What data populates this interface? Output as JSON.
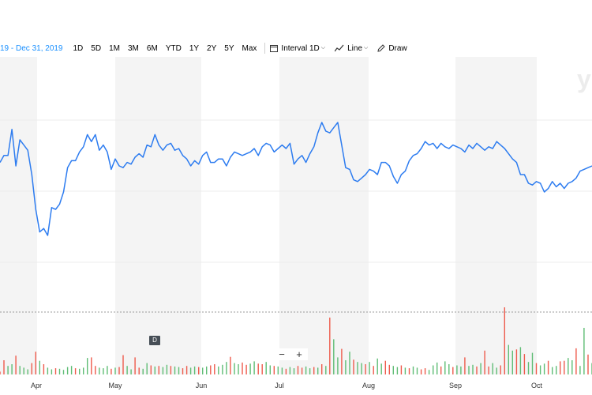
{
  "toolbar": {
    "date_range": "19 - Dec 31, 2019",
    "periods": [
      "1D",
      "5D",
      "1M",
      "3M",
      "6M",
      "YTD",
      "1Y",
      "2Y",
      "5Y",
      "Max"
    ],
    "interval_label": "Interval",
    "interval_value": "1D",
    "chart_type": "Line",
    "draw_label": "Draw"
  },
  "watermark": "y",
  "d_badge": "D",
  "zoom": {
    "minus": "−",
    "plus": "+"
  },
  "colors": {
    "price_line": "#2d7cf0",
    "volume_up": "#5fbd75",
    "volume_down": "#ee5b4c",
    "shade": "#f4f4f4",
    "range_text": "#188fff"
  },
  "chart_data": {
    "type": "line",
    "title": "",
    "months": [
      "Apr",
      "May",
      "Jun",
      "Jul",
      "Aug",
      "Sep",
      "Oct"
    ],
    "price": [
      0.62,
      0.66,
      0.66,
      0.81,
      0.6,
      0.75,
      0.72,
      0.69,
      0.55,
      0.35,
      0.22,
      0.24,
      0.2,
      0.36,
      0.35,
      0.38,
      0.45,
      0.59,
      0.63,
      0.63,
      0.68,
      0.71,
      0.78,
      0.74,
      0.78,
      0.69,
      0.72,
      0.68,
      0.58,
      0.64,
      0.6,
      0.59,
      0.62,
      0.61,
      0.65,
      0.67,
      0.65,
      0.72,
      0.71,
      0.78,
      0.72,
      0.69,
      0.72,
      0.73,
      0.69,
      0.7,
      0.66,
      0.64,
      0.6,
      0.63,
      0.61,
      0.66,
      0.68,
      0.62,
      0.62,
      0.64,
      0.64,
      0.6,
      0.65,
      0.68,
      0.67,
      0.66,
      0.67,
      0.68,
      0.7,
      0.66,
      0.71,
      0.73,
      0.72,
      0.68,
      0.7,
      0.72,
      0.7,
      0.73,
      0.61,
      0.64,
      0.66,
      0.62,
      0.67,
      0.71,
      0.79,
      0.85,
      0.8,
      0.79,
      0.82,
      0.85,
      0.72,
      0.59,
      0.58,
      0.52,
      0.51,
      0.53,
      0.55,
      0.58,
      0.57,
      0.55,
      0.62,
      0.62,
      0.6,
      0.54,
      0.5,
      0.55,
      0.57,
      0.63,
      0.66,
      0.67,
      0.7,
      0.74,
      0.72,
      0.73,
      0.7,
      0.73,
      0.71,
      0.7,
      0.72,
      0.71,
      0.7,
      0.68,
      0.72,
      0.7,
      0.73,
      0.71,
      0.69,
      0.71,
      0.7,
      0.74,
      0.72,
      0.7,
      0.67,
      0.64,
      0.62,
      0.55,
      0.55,
      0.5,
      0.49,
      0.51,
      0.5,
      0.45,
      0.47,
      0.51,
      0.48,
      0.5,
      0.47,
      0.5,
      0.51,
      0.53,
      0.57,
      0.58,
      0.59,
      0.6
    ],
    "volume": [
      0.05,
      0.25,
      0.15,
      0.18,
      0.33,
      0.15,
      0.12,
      0.09,
      0.2,
      0.4,
      0.24,
      0.18,
      0.12,
      0.09,
      0.11,
      0.1,
      0.08,
      0.13,
      0.15,
      0.11,
      0.1,
      0.12,
      0.29,
      0.3,
      0.15,
      0.12,
      0.11,
      0.15,
      0.1,
      0.12,
      0.13,
      0.34,
      0.15,
      0.09,
      0.3,
      0.12,
      0.1,
      0.2,
      0.16,
      0.14,
      0.15,
      0.13,
      0.17,
      0.15,
      0.14,
      0.13,
      0.11,
      0.15,
      0.12,
      0.14,
      0.13,
      0.12,
      0.14,
      0.16,
      0.18,
      0.14,
      0.17,
      0.22,
      0.31,
      0.2,
      0.18,
      0.21,
      0.17,
      0.19,
      0.23,
      0.19,
      0.18,
      0.22,
      0.16,
      0.15,
      0.14,
      0.12,
      0.1,
      0.13,
      0.11,
      0.15,
      0.12,
      0.14,
      0.11,
      0.13,
      0.12,
      0.18,
      0.15,
      1.0,
      0.62,
      0.3,
      0.45,
      0.25,
      0.4,
      0.26,
      0.22,
      0.2,
      0.18,
      0.22,
      0.15,
      0.28,
      0.19,
      0.24,
      0.17,
      0.15,
      0.13,
      0.16,
      0.12,
      0.11,
      0.14,
      0.12,
      0.09,
      0.11,
      0.08,
      0.16,
      0.21,
      0.14,
      0.23,
      0.18,
      0.13,
      0.16,
      0.14,
      0.3,
      0.15,
      0.17,
      0.14,
      0.2,
      0.42,
      0.14,
      0.2,
      0.12,
      0.16,
      1.18,
      0.52,
      0.42,
      0.44,
      0.48,
      0.36,
      0.22,
      0.38,
      0.2,
      0.16,
      0.19,
      0.24,
      0.13,
      0.15,
      0.23,
      0.24,
      0.29,
      0.25,
      0.46,
      0.15,
      0.82,
      0.35,
      0.2
    ],
    "volume_up": [
      0,
      0,
      1,
      1,
      0,
      1,
      1,
      1,
      0,
      0,
      1,
      0,
      1,
      1,
      0,
      1,
      1,
      1,
      1,
      0,
      1,
      1,
      1,
      0,
      0,
      1,
      1,
      1,
      0,
      1,
      0,
      0,
      1,
      1,
      0,
      0,
      1,
      1,
      0,
      1,
      0,
      1,
      1,
      0,
      1,
      1,
      0,
      0,
      1,
      1,
      0,
      1,
      1,
      0,
      0,
      1,
      1,
      1,
      0,
      1,
      1,
      0,
      0,
      1,
      1,
      0,
      0,
      1,
      1,
      0,
      1,
      1,
      0,
      1,
      1,
      0,
      0,
      1,
      1,
      0,
      1,
      0,
      1,
      0,
      1,
      1,
      0,
      1,
      1,
      0,
      1,
      1,
      0,
      1,
      0,
      1,
      1,
      0,
      0,
      1,
      1,
      0,
      1,
      0,
      1,
      1,
      0,
      0,
      1,
      1,
      1,
      0,
      1,
      1,
      0,
      1,
      1,
      0,
      1,
      1,
      0,
      1,
      0,
      0,
      1,
      1,
      0,
      0,
      1,
      1,
      0,
      1,
      0,
      1,
      1,
      0,
      1,
      1,
      0,
      1,
      1,
      0,
      0,
      1,
      1,
      0,
      1,
      1,
      0,
      1
    ]
  }
}
